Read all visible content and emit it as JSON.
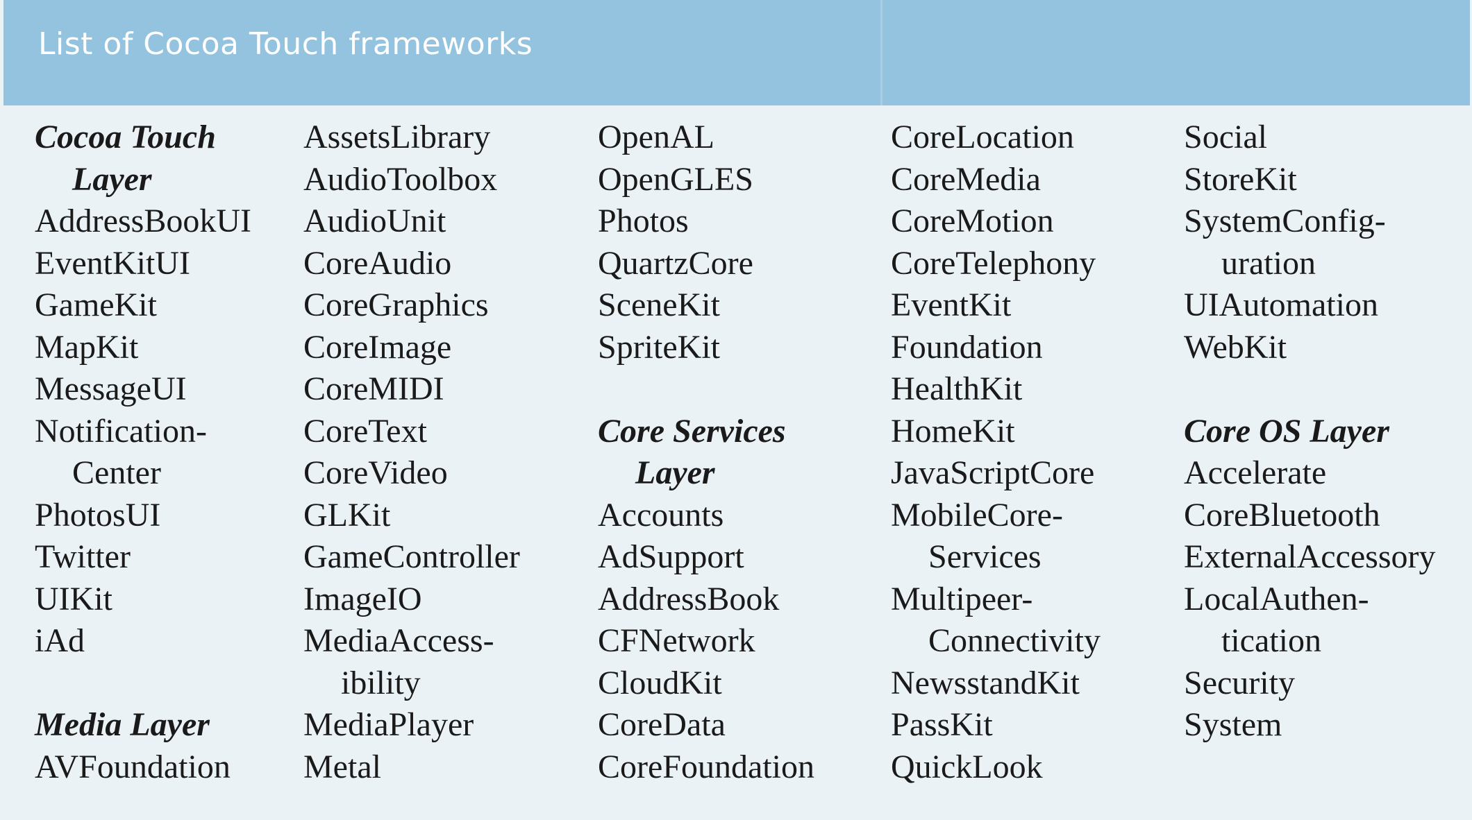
{
  "title": "List of Cocoa Touch frameworks",
  "columns": [
    [
      {
        "text": "Cocoa Touch",
        "style": "heading"
      },
      {
        "text": "Layer",
        "style": "heading-indent"
      },
      {
        "text": "AddressBookUI"
      },
      {
        "text": "EventKitUI"
      },
      {
        "text": "GameKit"
      },
      {
        "text": "MapKit"
      },
      {
        "text": "MessageUI"
      },
      {
        "text": "Notification-"
      },
      {
        "text": "Center",
        "style": "indent"
      },
      {
        "text": "PhotosUI"
      },
      {
        "text": "Twitter"
      },
      {
        "text": "UIKit"
      },
      {
        "text": "iAd"
      },
      {
        "text": "",
        "style": "blank"
      },
      {
        "text": "Media Layer",
        "style": "heading"
      },
      {
        "text": "AVFoundation"
      }
    ],
    [
      {
        "text": "AssetsLibrary"
      },
      {
        "text": "AudioToolbox"
      },
      {
        "text": "AudioUnit"
      },
      {
        "text": "CoreAudio"
      },
      {
        "text": "CoreGraphics"
      },
      {
        "text": "CoreImage"
      },
      {
        "text": "CoreMIDI"
      },
      {
        "text": "CoreText"
      },
      {
        "text": "CoreVideo"
      },
      {
        "text": "GLKit"
      },
      {
        "text": "GameController"
      },
      {
        "text": "ImageIO"
      },
      {
        "text": "MediaAccess-"
      },
      {
        "text": "ibility",
        "style": "indent"
      },
      {
        "text": "MediaPlayer"
      },
      {
        "text": "Metal"
      }
    ],
    [
      {
        "text": "OpenAL"
      },
      {
        "text": "OpenGLES"
      },
      {
        "text": "Photos"
      },
      {
        "text": "QuartzCore"
      },
      {
        "text": "SceneKit"
      },
      {
        "text": "SpriteKit"
      },
      {
        "text": "",
        "style": "blank"
      },
      {
        "text": "Core Services",
        "style": "heading"
      },
      {
        "text": "Layer",
        "style": "heading-indent"
      },
      {
        "text": "Accounts"
      },
      {
        "text": "AdSupport"
      },
      {
        "text": "AddressBook"
      },
      {
        "text": "CFNetwork"
      },
      {
        "text": "CloudKit"
      },
      {
        "text": "CoreData"
      },
      {
        "text": "CoreFoundation"
      }
    ],
    [
      {
        "text": "CoreLocation"
      },
      {
        "text": "CoreMedia"
      },
      {
        "text": "CoreMotion"
      },
      {
        "text": "CoreTelephony"
      },
      {
        "text": "EventKit"
      },
      {
        "text": "Foundation"
      },
      {
        "text": "HealthKit"
      },
      {
        "text": "HomeKit"
      },
      {
        "text": "JavaScriptCore"
      },
      {
        "text": "MobileCore-"
      },
      {
        "text": "Services",
        "style": "indent"
      },
      {
        "text": "Multipeer-"
      },
      {
        "text": "Connectivity",
        "style": "indent"
      },
      {
        "text": "NewsstandKit"
      },
      {
        "text": "PassKit"
      },
      {
        "text": "QuickLook"
      }
    ],
    [
      {
        "text": "Social"
      },
      {
        "text": "StoreKit"
      },
      {
        "text": "SystemConfig-"
      },
      {
        "text": "uration",
        "style": "indent"
      },
      {
        "text": "UIAutomation"
      },
      {
        "text": "WebKit"
      },
      {
        "text": "",
        "style": "blank"
      },
      {
        "text": "Core OS Layer",
        "style": "heading"
      },
      {
        "text": "Accelerate"
      },
      {
        "text": "CoreBluetooth"
      },
      {
        "text": "ExternalAccessory"
      },
      {
        "text": "LocalAuthen-"
      },
      {
        "text": "tication",
        "style": "indent"
      },
      {
        "text": "Security"
      },
      {
        "text": "System"
      }
    ]
  ]
}
